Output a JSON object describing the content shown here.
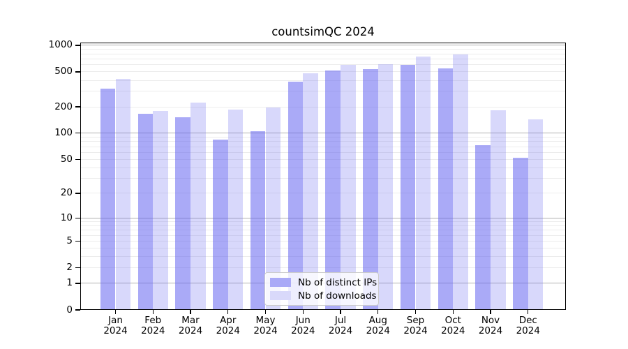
{
  "chart_data": {
    "type": "bar",
    "title": "countsimQC 2024",
    "categories": [
      "Jan 2024",
      "Feb 2024",
      "Mar 2024",
      "Apr 2024",
      "May 2024",
      "Jun 2024",
      "Jul 2024",
      "Aug 2024",
      "Sep 2024",
      "Oct 2024",
      "Nov 2024",
      "Dec 2024"
    ],
    "series": [
      {
        "name": "Nb of distinct IPs",
        "color_hex": "#aaaaf7",
        "color_rgba": "rgba(100,100,240,0.55)",
        "values": [
          322,
          167,
          151,
          85,
          106,
          389,
          521,
          540,
          602,
          552,
          73,
          52
        ]
      },
      {
        "name": "Nb of downloads",
        "color_hex": "#d9d9fa",
        "color_rgba": "rgba(100,100,240,0.25)",
        "values": [
          417,
          178,
          224,
          185,
          196,
          480,
          602,
          613,
          750,
          793,
          181,
          143
        ]
      }
    ],
    "xlabel": "",
    "ylabel": "",
    "y_axis": {
      "scale": "log1p",
      "tick_values": [
        0,
        1,
        2,
        5,
        10,
        20,
        50,
        100,
        200,
        500,
        1000
      ],
      "major_gridlines": [
        1,
        10,
        100,
        1000
      ],
      "minor_gridlines": [
        2,
        3,
        4,
        5,
        6,
        7,
        8,
        9,
        20,
        30,
        40,
        50,
        60,
        70,
        80,
        90,
        200,
        300,
        400,
        500,
        600,
        700,
        800,
        900
      ],
      "ymax": 1075,
      "ymin": 0
    },
    "legend": {
      "position": "bottom-center",
      "entries": [
        "Nb of distinct IPs",
        "Nb of downloads"
      ]
    },
    "colors": {
      "minor_grid": "#ececec",
      "major_grid": "#b0b0b0",
      "axis": "#000000",
      "background": "#ffffff"
    },
    "grid": "on"
  }
}
